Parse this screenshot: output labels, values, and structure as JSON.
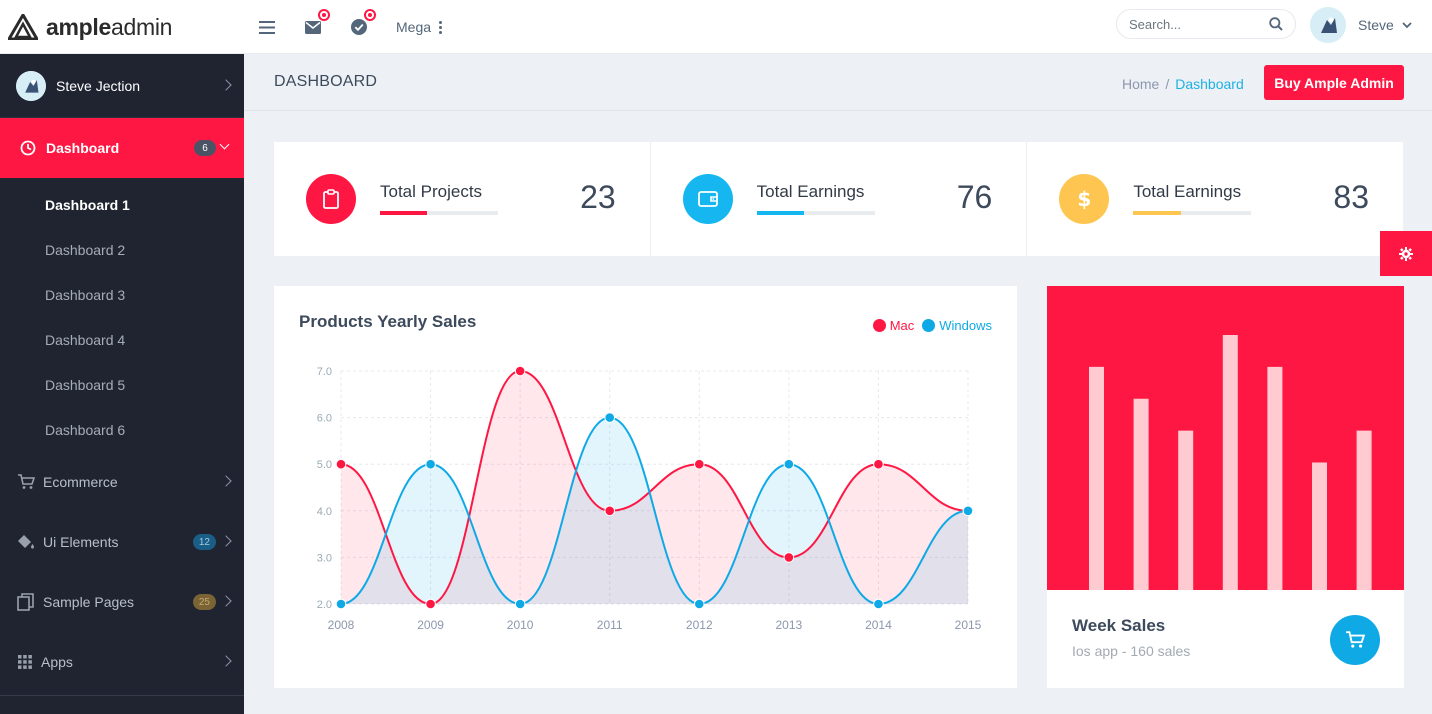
{
  "brand": {
    "bold": "ample",
    "light": "admin"
  },
  "topbar": {
    "mega_label": "Mega",
    "search_placeholder": "Search...",
    "user_name": "Steve"
  },
  "sidebar": {
    "user_name": "Steve Jection",
    "active": {
      "label": "Dashboard",
      "badge": "6"
    },
    "subitems": [
      "Dashboard 1",
      "Dashboard 2",
      "Dashboard 3",
      "Dashboard 4",
      "Dashboard 5",
      "Dashboard 6"
    ],
    "items": [
      {
        "label": "Ecommerce",
        "badge": ""
      },
      {
        "label": "Ui Elements",
        "badge": "12"
      },
      {
        "label": "Sample Pages",
        "badge": "25"
      },
      {
        "label": "Apps",
        "badge": ""
      }
    ]
  },
  "page": {
    "title": "DASHBOARD",
    "breadcrumb_home": "Home",
    "breadcrumb_sep": "/",
    "breadcrumb_current": "Dashboard",
    "buy_button": "Buy Ample Admin"
  },
  "stats": [
    {
      "label": "Total Projects",
      "value": "23",
      "color": "#ff1744",
      "progress": 0.4
    },
    {
      "label": "Total Earnings",
      "value": "76",
      "color": "#16b7f0",
      "progress": 0.4
    },
    {
      "label": "Total Earnings",
      "value": "83",
      "color": "#fec651",
      "progress": 0.4
    }
  ],
  "chart_data": {
    "type": "area",
    "title": "Products Yearly Sales",
    "categories": [
      "2008",
      "2009",
      "2010",
      "2011",
      "2012",
      "2013",
      "2014",
      "2015"
    ],
    "series": [
      {
        "name": "Mac",
        "color": "#ff1744",
        "values": [
          5,
          2,
          7,
          4,
          5,
          3,
          5,
          4
        ]
      },
      {
        "name": "Windows",
        "color": "#0fa9e6",
        "values": [
          2,
          5,
          2,
          6,
          2,
          5,
          2,
          4
        ]
      }
    ],
    "yticks": [
      "2.0",
      "3.0",
      "4.0",
      "5.0",
      "6.0",
      "7.0"
    ],
    "ylim": [
      2,
      7
    ]
  },
  "week_sales": {
    "title": "Week Sales",
    "subtitle": "Ios app - 160 sales",
    "bar_color": "#ffcbd1",
    "bg_color": "#ff1744",
    "values": [
      7,
      6,
      5,
      8,
      7,
      4,
      5
    ]
  }
}
